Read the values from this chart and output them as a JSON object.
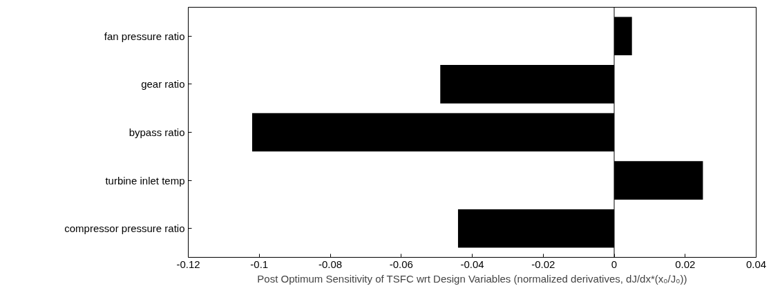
{
  "chart_data": {
    "type": "bar",
    "orientation": "horizontal",
    "xlabel": "Post Optimum Sensitivity of TSFC wrt Design Variables (normalized derivatives, dJ/dx*(x₀/J₀))",
    "categories": [
      "fan pressure ratio",
      "gear ratio",
      "bypass ratio",
      "turbine inlet temp",
      "compressor pressure ratio"
    ],
    "values": [
      0.005,
      -0.049,
      -0.102,
      0.025,
      -0.044
    ],
    "color": "#000000",
    "xlim": [
      -0.12,
      0.04
    ],
    "xticks": [
      {
        "value": -0.12,
        "label": "-0.12"
      },
      {
        "value": -0.1,
        "label": "-0.1"
      },
      {
        "value": -0.08,
        "label": "-0.08"
      },
      {
        "value": -0.06,
        "label": "-0.06"
      },
      {
        "value": -0.04,
        "label": "-0.04"
      },
      {
        "value": -0.02,
        "label": "-0.02"
      },
      {
        "value": 0,
        "label": "0"
      },
      {
        "value": 0.02,
        "label": "0.02"
      },
      {
        "value": 0.04,
        "label": "0.04"
      }
    ],
    "ref_lines": [
      {
        "axis": "x",
        "value": 0,
        "color": "#000000"
      }
    ],
    "grid": false
  }
}
